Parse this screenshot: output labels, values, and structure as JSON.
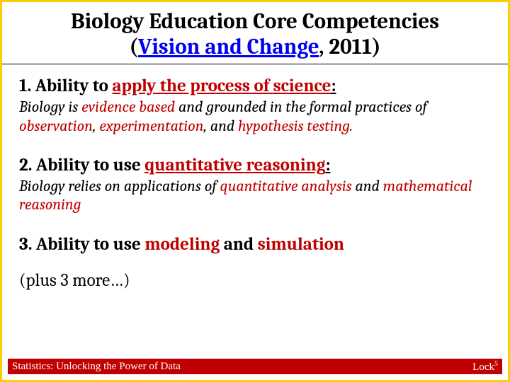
{
  "title": {
    "line1": "Biology Education Core Competencies",
    "paren_open": "(",
    "link_text": "Vision and Change",
    "after_link": ", 2011)"
  },
  "items": [
    {
      "num": "1. Ability to ",
      "red_u": "apply the process of science",
      "tail": ":",
      "desc_pre": "Biology is ",
      "desc_red1": "evidence based",
      "desc_mid1": " and grounded in the formal practices of ",
      "desc_red2": "observation",
      "desc_mid2": ", ",
      "desc_red3": "experimentation",
      "desc_mid3": ", and ",
      "desc_red4": "hypothesis testing",
      "desc_end": "."
    },
    {
      "num": "2. Ability to use ",
      "red_u": "quantitative reasoning",
      "tail": ":",
      "desc_pre": "Biology relies on applications of ",
      "desc_red1": "quantitative analysis",
      "desc_mid1": " and ",
      "desc_red2": "mathematical reasoning",
      "desc_mid2": "",
      "desc_red3": "",
      "desc_mid3": "",
      "desc_red4": "",
      "desc_end": ""
    },
    {
      "num": "3. Ability to use ",
      "red_u": "modeling",
      "tail_mid": " and ",
      "red_u2": "simulation",
      "tail": "",
      "desc_pre": "",
      "desc_red1": "",
      "desc_mid1": "",
      "desc_red2": "",
      "desc_mid2": "",
      "desc_red3": "",
      "desc_mid3": "",
      "desc_red4": "",
      "desc_end": ""
    }
  ],
  "more": "(plus 3 more…)",
  "footer": {
    "left": "Statistics: Unlocking the Power of Data",
    "right_base": "Lock",
    "right_sup": "5"
  },
  "colors": {
    "border": "#ffcc00",
    "accent_red": "#c00000",
    "link_blue": "#0000ee",
    "footer_bg": "#c00000",
    "footer_text": "#ffffff"
  }
}
